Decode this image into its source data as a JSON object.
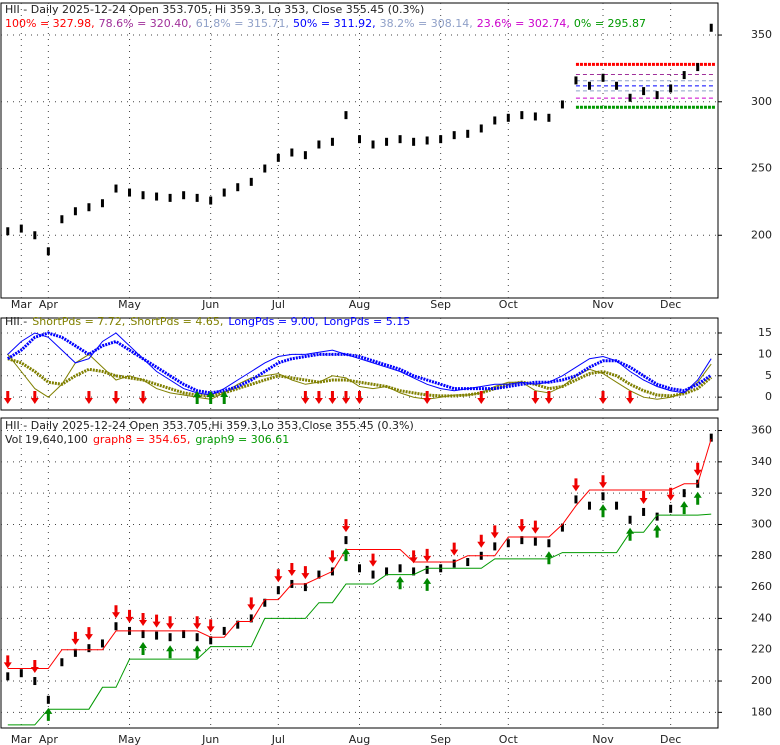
{
  "chart_data": [
    {
      "type": "price",
      "title": "HII - Daily 2025-12-24 Open 353.705, Hi 359.3, Lo 353, Close 355.45 (0.3%)",
      "fib": [
        {
          "label": "100% = 327.98,",
          "value": 327.98,
          "color": "#ff0000"
        },
        {
          "label": "78.6% = 320.40,",
          "value": 320.4,
          "color": "#a0309a"
        },
        {
          "label": "61.8% = 315.71,",
          "value": 315.71,
          "color": "#8fa0c8"
        },
        {
          "label": "50% = 311.92,",
          "value": 311.92,
          "color": "#0000ff"
        },
        {
          "label": "38.2% = 308.14,",
          "value": 308.14,
          "color": "#8fa0c8"
        },
        {
          "label": "23.6% = 302.74,",
          "value": 302.74,
          "color": "#cc00cc"
        },
        {
          "label": "0% = 295.87",
          "value": 295.87,
          "color": "#009900"
        }
      ],
      "categories": [
        null,
        "Mar",
        null,
        "Apr",
        null,
        null,
        null,
        null,
        null,
        "May",
        null,
        null,
        null,
        null,
        null,
        "Jun",
        null,
        null,
        null,
        null,
        "Jul",
        null,
        null,
        null,
        null,
        null,
        "Aug",
        null,
        null,
        null,
        null,
        null,
        "Sep",
        null,
        null,
        null,
        null,
        "Oct",
        null,
        null,
        null,
        null,
        null,
        null,
        "Nov",
        null,
        null,
        null,
        null,
        "Dec",
        null,
        null,
        null
      ],
      "values": [
        203,
        205,
        200,
        188,
        212,
        218,
        221,
        224,
        235,
        232,
        230,
        229,
        228,
        230,
        228,
        226,
        232,
        236,
        240,
        250,
        258,
        262,
        260,
        268,
        270,
        290,
        272,
        268,
        270,
        272,
        270,
        271,
        272,
        275,
        276,
        280,
        286,
        288,
        290,
        289,
        288,
        298,
        316,
        312,
        318,
        312,
        303,
        308,
        305,
        310,
        320,
        326,
        355.45
      ],
      "color": "#000000",
      "ylim": [
        153,
        374
      ],
      "yticks": [
        200,
        250,
        300,
        350
      ],
      "grid": true
    },
    {
      "type": "line",
      "title": "HII -",
      "series": [
        {
          "name": "ShortPds = 7.72,",
          "color": "#808000",
          "thick": false,
          "values": [
            10,
            6,
            2,
            0,
            3,
            8,
            10,
            7,
            4,
            5,
            4,
            2,
            1,
            0.5,
            0,
            -0.5,
            1,
            3,
            4.5,
            5,
            5.5,
            4,
            3,
            3.5,
            5,
            4.5,
            2.5,
            2,
            2.5,
            1,
            0,
            -0.5,
            0,
            0.5,
            0.5,
            1,
            2.5,
            3.5,
            3.5,
            1.5,
            1,
            2.5,
            5,
            6.5,
            5.5,
            3.5,
            1.5,
            0,
            -0.5,
            0,
            1,
            3.5,
            7.72
          ]
        },
        {
          "name": "ShortPds = 4.65,",
          "color": "#808000",
          "thick": true,
          "values": [
            9,
            8,
            6,
            3.5,
            3,
            5,
            6.5,
            6,
            5,
            4.5,
            4,
            3,
            2,
            1,
            0.5,
            0.3,
            1,
            2,
            3,
            4,
            5,
            4.5,
            4,
            3.5,
            4,
            4,
            3.5,
            3,
            2.5,
            1.5,
            1,
            0.5,
            0.3,
            0.3,
            0.5,
            1,
            2,
            3,
            3.5,
            3,
            2,
            2.5,
            4,
            5.5,
            6,
            5,
            3,
            1.5,
            0.5,
            0.3,
            0.8,
            2,
            4.65
          ]
        },
        {
          "name": "LongPds = 9.00,",
          "color": "#0000ff",
          "thick": false,
          "values": [
            10,
            13,
            15,
            14,
            11,
            8,
            9,
            13,
            15,
            12,
            9,
            6,
            4,
            2,
            1,
            0.5,
            2,
            4,
            6,
            8,
            9.5,
            10,
            10,
            10.5,
            11,
            10,
            9,
            8,
            7,
            6,
            4.5,
            3,
            2,
            1.5,
            2,
            2.5,
            3,
            3,
            3.5,
            3,
            3.5,
            5,
            7,
            9,
            9.5,
            8.5,
            6,
            4,
            2.5,
            1.5,
            1,
            4,
            9.0
          ]
        },
        {
          "name": "LongPds = 5.15",
          "color": "#0000ff",
          "thick": true,
          "values": [
            9,
            11,
            14,
            15,
            14,
            12,
            10,
            12,
            13,
            11,
            9,
            7,
            5,
            3,
            1.5,
            1,
            1.5,
            2.5,
            4,
            6,
            8,
            9,
            9.5,
            10,
            10,
            10,
            9.5,
            8.5,
            7.5,
            6.5,
            5,
            4,
            3,
            2,
            2,
            2,
            2,
            2.5,
            3,
            3.5,
            3.5,
            4,
            5,
            7,
            8.5,
            8.5,
            7,
            5,
            3,
            2,
            1.5,
            3,
            5.15
          ]
        }
      ],
      "sell_signals": [
        0,
        2,
        6,
        8,
        10,
        22,
        23,
        24,
        25,
        26,
        31,
        35,
        39,
        40,
        44,
        46
      ],
      "buy_signals": [
        14,
        15,
        16
      ],
      "ylim": [
        -3,
        18.5
      ],
      "yticks": [
        0,
        5,
        10,
        15
      ],
      "grid": true
    },
    {
      "type": "price",
      "title": "HII - Daily 2025-12-24 Open 353.705,Hi 359.3,Lo 353,Close 355.45 (0.3%)",
      "subtitle": "Vol 19,640,100",
      "categories": [
        null,
        "Mar",
        null,
        "Apr",
        null,
        null,
        null,
        null,
        null,
        "May",
        null,
        null,
        null,
        null,
        null,
        "Jun",
        null,
        null,
        null,
        null,
        "Jul",
        null,
        null,
        null,
        null,
        null,
        "Aug",
        null,
        null,
        null,
        null,
        null,
        "Sep",
        null,
        null,
        null,
        null,
        "Oct",
        null,
        null,
        null,
        null,
        null,
        null,
        "Nov",
        null,
        null,
        null,
        null,
        "Dec",
        null,
        null,
        null
      ],
      "values": [
        203,
        205,
        200,
        188,
        212,
        218,
        221,
        224,
        235,
        232,
        230,
        229,
        228,
        230,
        228,
        226,
        232,
        236,
        240,
        250,
        258,
        262,
        260,
        268,
        270,
        290,
        272,
        268,
        270,
        272,
        270,
        271,
        272,
        275,
        276,
        280,
        286,
        288,
        290,
        289,
        288,
        298,
        316,
        312,
        318,
        312,
        303,
        308,
        305,
        310,
        320,
        326,
        355.45
      ],
      "color": "#000000",
      "series": [
        {
          "name": "graph8 = 354.65,",
          "color": "#ff0000",
          "values": [
            208,
            208,
            208,
            208,
            220,
            220,
            220,
            220,
            232,
            232,
            232,
            232,
            232,
            232,
            232,
            228,
            228,
            238,
            238,
            252,
            252,
            262,
            262,
            266,
            270,
            284,
            284,
            284,
            284,
            284,
            276,
            276,
            276,
            276,
            280,
            280,
            280,
            292,
            292,
            292,
            292,
            300,
            312,
            322,
            322,
            322,
            322,
            322,
            322,
            322,
            326,
            326,
            354.65
          ]
        },
        {
          "name": "graph9 = 306.61",
          "color": "#009900",
          "values": [
            172,
            172,
            172,
            182,
            182,
            182,
            182,
            196,
            196,
            214,
            214,
            214,
            214,
            214,
            214,
            222,
            222,
            222,
            222,
            240,
            240,
            240,
            240,
            250,
            250,
            262,
            262,
            262,
            268,
            268,
            268,
            272,
            272,
            272,
            272,
            272,
            278,
            278,
            278,
            278,
            278,
            282,
            282,
            282,
            282,
            282,
            295,
            295,
            306,
            306,
            306,
            306,
            306.61
          ]
        }
      ],
      "sell_signals": [
        0,
        2,
        5,
        6,
        8,
        9,
        10,
        11,
        12,
        14,
        15,
        18,
        20,
        21,
        22,
        24,
        25,
        27,
        30,
        31,
        33,
        35,
        36,
        38,
        39,
        42,
        44,
        47,
        49,
        51
      ],
      "buy_signals": [
        3,
        10,
        12,
        14,
        25,
        29,
        31,
        40,
        44,
        46,
        48,
        50,
        51
      ],
      "ylim": [
        170,
        368
      ],
      "yticks": [
        180,
        200,
        220,
        240,
        260,
        280,
        300,
        320,
        340,
        360
      ],
      "grid": true
    }
  ]
}
